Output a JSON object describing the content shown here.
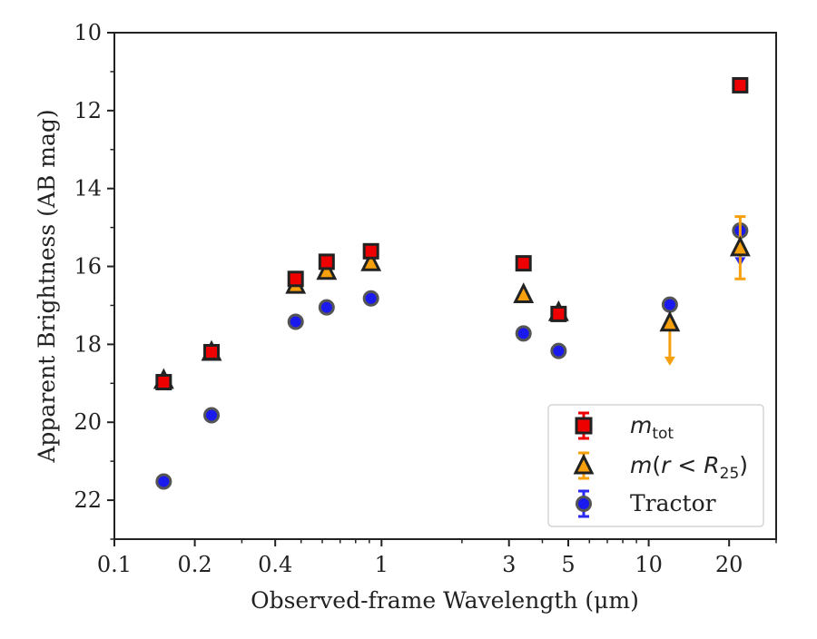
{
  "chart_data": {
    "type": "scatter",
    "xscale": "log",
    "yaxis_inverted": true,
    "xlim": [
      0.1,
      30
    ],
    "ylim": [
      23,
      10
    ],
    "xlabel": "Observed-frame Wavelength (μm)",
    "ylabel": "Apparent Brightness (AB mag)",
    "x_ticks": [
      0.1,
      0.2,
      0.4,
      1,
      3,
      5,
      10,
      20
    ],
    "x_tick_labels": [
      "0.1",
      "0.2",
      "0.4",
      "1",
      "3",
      "5",
      "10",
      "20"
    ],
    "x_minor_ticks": [
      0.3,
      0.5,
      0.6,
      0.7,
      0.8,
      0.9,
      2,
      4,
      6,
      7,
      8,
      9,
      30
    ],
    "y_ticks": [
      10,
      12,
      14,
      16,
      18,
      20,
      22
    ],
    "y_tick_labels": [
      "10",
      "12",
      "14",
      "16",
      "18",
      "20",
      "22"
    ],
    "grid": false,
    "legend_position": "lower-right",
    "series": [
      {
        "name": "m_tot",
        "marker": "square",
        "color": "#ee0000",
        "errcolor": "#ee0000",
        "points": [
          {
            "x": 0.153,
            "y": 18.97
          },
          {
            "x": 0.231,
            "y": 18.2
          },
          {
            "x": 0.477,
            "y": 16.32
          },
          {
            "x": 0.623,
            "y": 15.88
          },
          {
            "x": 0.913,
            "y": 15.61
          },
          {
            "x": 3.4,
            "y": 15.92
          },
          {
            "x": 4.6,
            "y": 17.22
          },
          {
            "x": 22.0,
            "y": 11.35
          }
        ]
      },
      {
        "name": "m(r<R25)",
        "marker": "triangle",
        "color": "#f5a00c",
        "errcolor": "#f5a00c",
        "points": [
          {
            "x": 0.153,
            "y": 18.92
          },
          {
            "x": 0.231,
            "y": 18.2
          },
          {
            "x": 0.477,
            "y": 16.48
          },
          {
            "x": 0.623,
            "y": 16.12
          },
          {
            "x": 0.913,
            "y": 15.9
          },
          {
            "x": 3.4,
            "y": 16.72
          },
          {
            "x": 4.6,
            "y": 17.18
          },
          {
            "x": 12.0,
            "y": 17.45,
            "upper_limit": true,
            "limit_to": 18.5
          },
          {
            "x": 22.0,
            "y": 15.52,
            "yerr": 0.8
          }
        ]
      },
      {
        "name": "Tractor",
        "marker": "circle",
        "color": "#1a1aee",
        "errcolor": "#2a2af0",
        "points": [
          {
            "x": 0.153,
            "y": 21.52
          },
          {
            "x": 0.231,
            "y": 19.82
          },
          {
            "x": 0.477,
            "y": 17.42
          },
          {
            "x": 0.623,
            "y": 17.05
          },
          {
            "x": 0.913,
            "y": 16.82
          },
          {
            "x": 3.4,
            "y": 17.72
          },
          {
            "x": 4.6,
            "y": 18.17
          },
          {
            "x": 12.0,
            "y": 16.98
          },
          {
            "x": 22.0,
            "y": 15.08,
            "upper_limit": true,
            "limit_to": 15.95
          }
        ]
      }
    ]
  }
}
